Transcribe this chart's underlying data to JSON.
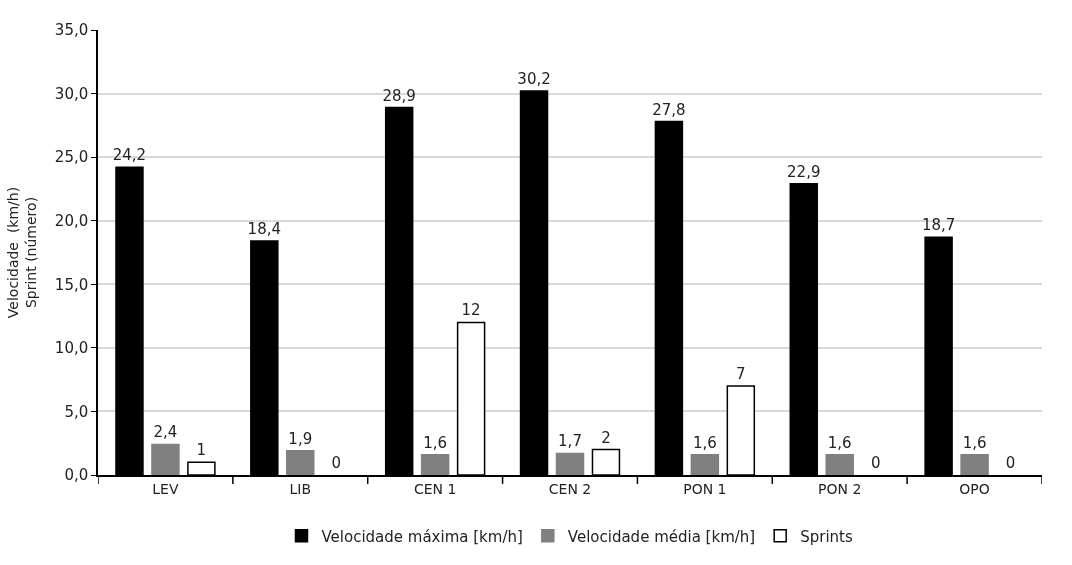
{
  "chart_data": {
    "type": "bar",
    "ylabel": "Velocidade  (km/h)\nSprint (número)",
    "categories": [
      "LEV",
      "LIB",
      "CEN 1",
      "CEN 2",
      "PON 1",
      "PON 2",
      "OPO"
    ],
    "series": [
      {
        "name": "Velocidade máxima [km/h]",
        "color": "#000000",
        "values": [
          24.2,
          18.4,
          28.9,
          30.2,
          27.8,
          22.9,
          18.7
        ],
        "value_labels": [
          "24,2",
          "18,4",
          "28,9",
          "30,2",
          "27,8",
          "22,9",
          "18,7"
        ]
      },
      {
        "name": "Velocidade média [km/h]",
        "color": "#808080",
        "values": [
          2.4,
          1.9,
          1.6,
          1.7,
          1.6,
          1.6,
          1.6
        ],
        "value_labels": [
          "2,4",
          "1,9",
          "1,6",
          "1,7",
          "1,6",
          "1,6",
          "1,6"
        ]
      },
      {
        "name": "Sprints",
        "color": "#ffffff",
        "values": [
          1,
          0,
          12,
          2,
          7,
          0,
          0
        ],
        "value_labels": [
          "1",
          "0",
          "12",
          "2",
          "7",
          "0",
          "0"
        ]
      }
    ],
    "ylim": [
      0,
      35
    ],
    "yticks": [
      {
        "value": 0,
        "label": "0,0"
      },
      {
        "value": 5,
        "label": "5,0"
      },
      {
        "value": 10,
        "label": "10,0"
      },
      {
        "value": 15,
        "label": "15,0"
      },
      {
        "value": 20,
        "label": "20,0"
      },
      {
        "value": 25,
        "label": "25,0"
      },
      {
        "value": 30,
        "label": "30,0"
      },
      {
        "value": 35,
        "label": "35,0"
      }
    ],
    "grid": "y",
    "legend": "bottom"
  }
}
